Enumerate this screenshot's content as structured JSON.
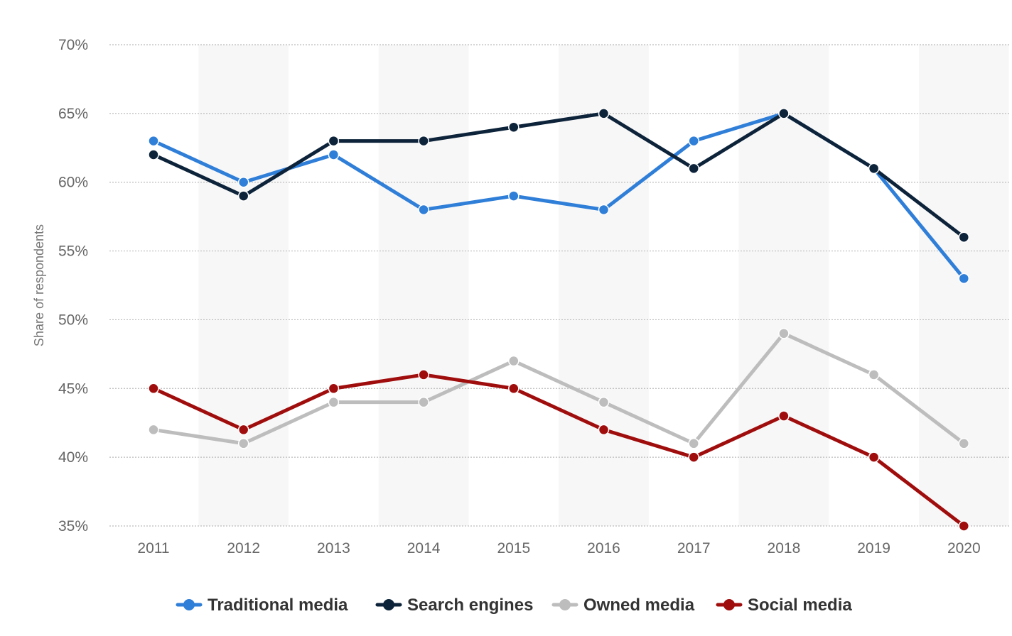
{
  "chart_data": {
    "type": "line",
    "title": "",
    "xlabel": "",
    "ylabel": "Share of respondents",
    "x": [
      "2011",
      "2012",
      "2013",
      "2014",
      "2015",
      "2016",
      "2017",
      "2018",
      "2019",
      "2020"
    ],
    "ylim": [
      35,
      70
    ],
    "yticks": [
      {
        "value": 70,
        "label": "70%"
      },
      {
        "value": 65,
        "label": "65%"
      },
      {
        "value": 60,
        "label": "60%"
      },
      {
        "value": 55,
        "label": "55%"
      },
      {
        "value": 50,
        "label": "50%"
      },
      {
        "value": 45,
        "label": "45%"
      },
      {
        "value": 40,
        "label": "40%"
      },
      {
        "value": 35,
        "label": "35%"
      }
    ],
    "grid": true,
    "alternating_column_bands": true,
    "legend_position": "bottom",
    "series": [
      {
        "name": "Traditional media",
        "color": "#2f7ed8",
        "values": [
          63,
          60,
          62,
          58,
          59,
          58,
          63,
          65,
          61,
          53
        ]
      },
      {
        "name": "Search engines",
        "color": "#0d233a",
        "values": [
          62,
          59,
          63,
          63,
          64,
          65,
          61,
          65,
          61,
          56
        ]
      },
      {
        "name": "Owned media",
        "color": "#bdbdbd",
        "values": [
          42,
          41,
          44,
          44,
          47,
          44,
          41,
          49,
          46,
          41
        ]
      },
      {
        "name": "Social media",
        "color": "#a00d0d",
        "values": [
          45,
          42,
          45,
          46,
          45,
          42,
          40,
          43,
          40,
          35
        ]
      }
    ]
  }
}
